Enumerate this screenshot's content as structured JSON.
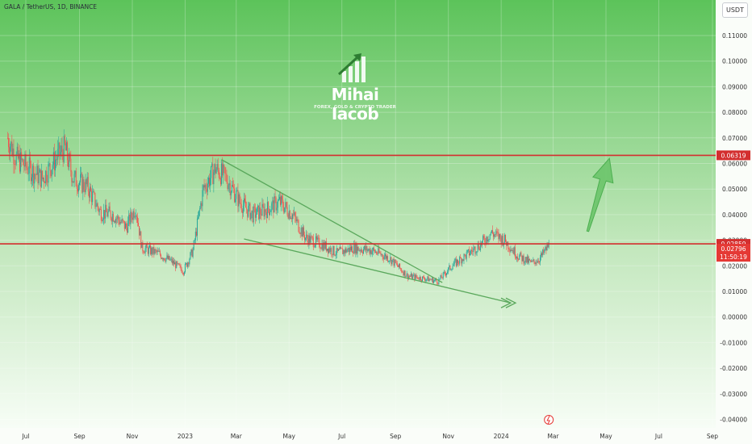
{
  "header": {
    "symbol_legend": "GALA / TetherUS, 1D, BINANCE",
    "currency_button": "USDT"
  },
  "watermark": {
    "name": "Mihai Iacob",
    "tagline": "FOREX, GOLD & CRYPTO TRADER",
    "logo_icon": "rising-bars-arrow-icon"
  },
  "colors": {
    "background_top": "#5cc35a",
    "background_bottom": "#f7fdf6",
    "level_line": "#d32f2f",
    "pattern_line": "#5aa85c",
    "candle_up": "#26a69a",
    "candle_down": "#ef5350",
    "projection_arrow": "#6cc46a"
  },
  "chart_data": {
    "type": "candlestick",
    "title": "GALA / TetherUS, 1D, BINANCE",
    "ylim": [
      -0.04,
      0.12
    ],
    "y_ticks": [
      "0.11000",
      "0.10000",
      "0.09000",
      "0.08000",
      "0.07000",
      "0.06000",
      "0.05000",
      "0.04000",
      "0.03000",
      "0.02000",
      "0.01000",
      "0.00000",
      "-0.01000",
      "-0.02000",
      "-0.03000",
      "-0.04000"
    ],
    "y_tick_values": [
      0.11,
      0.1,
      0.09,
      0.08,
      0.07,
      0.06,
      0.05,
      0.04,
      0.03,
      0.02,
      0.01,
      0.0,
      -0.01,
      -0.02,
      -0.03,
      -0.04
    ],
    "x_ticks": [
      "Jul",
      "Sep",
      "Nov",
      "2023",
      "Mar",
      "May",
      "Jul",
      "Sep",
      "Nov",
      "2024",
      "Mar",
      "May",
      "Jul",
      "Sep"
    ],
    "x_tick_dates": [
      "2022-07-01",
      "2022-09-01",
      "2022-11-01",
      "2023-01-01",
      "2023-03-01",
      "2023-05-01",
      "2023-07-01",
      "2023-09-01",
      "2023-11-01",
      "2024-01-01",
      "2024-03-01",
      "2024-05-01",
      "2024-07-01",
      "2024-09-01"
    ],
    "x_range": [
      "2022-06-10",
      "2024-09-05"
    ],
    "price_trend": [
      {
        "date": "2022-06-10",
        "close": 0.07
      },
      {
        "date": "2022-06-20",
        "close": 0.062
      },
      {
        "date": "2022-07-05",
        "close": 0.058
      },
      {
        "date": "2022-07-20",
        "close": 0.054
      },
      {
        "date": "2022-08-05",
        "close": 0.062
      },
      {
        "date": "2022-08-15",
        "close": 0.066
      },
      {
        "date": "2022-08-25",
        "close": 0.054
      },
      {
        "date": "2022-09-10",
        "close": 0.051
      },
      {
        "date": "2022-09-25",
        "close": 0.041
      },
      {
        "date": "2022-10-10",
        "close": 0.04
      },
      {
        "date": "2022-10-25",
        "close": 0.035
      },
      {
        "date": "2022-11-05",
        "close": 0.043
      },
      {
        "date": "2022-11-12",
        "close": 0.027
      },
      {
        "date": "2022-11-30",
        "close": 0.025
      },
      {
        "date": "2022-12-15",
        "close": 0.022
      },
      {
        "date": "2022-12-30",
        "close": 0.018
      },
      {
        "date": "2023-01-10",
        "close": 0.026
      },
      {
        "date": "2023-01-22",
        "close": 0.05
      },
      {
        "date": "2023-02-05",
        "close": 0.058
      },
      {
        "date": "2023-02-18",
        "close": 0.054
      },
      {
        "date": "2023-03-05",
        "close": 0.045
      },
      {
        "date": "2023-03-20",
        "close": 0.04
      },
      {
        "date": "2023-04-05",
        "close": 0.042
      },
      {
        "date": "2023-04-20",
        "close": 0.045
      },
      {
        "date": "2023-05-05",
        "close": 0.04
      },
      {
        "date": "2023-05-20",
        "close": 0.031
      },
      {
        "date": "2023-06-10",
        "close": 0.028
      },
      {
        "date": "2023-06-25",
        "close": 0.025
      },
      {
        "date": "2023-07-15",
        "close": 0.027
      },
      {
        "date": "2023-08-05",
        "close": 0.026
      },
      {
        "date": "2023-08-25",
        "close": 0.023
      },
      {
        "date": "2023-09-15",
        "close": 0.016
      },
      {
        "date": "2023-10-05",
        "close": 0.015
      },
      {
        "date": "2023-10-20",
        "close": 0.014
      },
      {
        "date": "2023-11-05",
        "close": 0.02
      },
      {
        "date": "2023-11-25",
        "close": 0.025
      },
      {
        "date": "2023-12-10",
        "close": 0.029
      },
      {
        "date": "2023-12-20",
        "close": 0.033
      },
      {
        "date": "2024-01-05",
        "close": 0.03
      },
      {
        "date": "2024-01-20",
        "close": 0.024
      },
      {
        "date": "2024-02-05",
        "close": 0.021
      },
      {
        "date": "2024-02-15",
        "close": 0.023
      },
      {
        "date": "2024-02-25",
        "close": 0.028
      }
    ],
    "horizontal_levels": [
      {
        "value": 0.06319,
        "label": "0.06319"
      },
      {
        "value": 0.02859,
        "label": "0.02859"
      }
    ],
    "current_price": {
      "value": 0.02796,
      "label": "0.02796",
      "countdown": "11:50:19"
    },
    "falling_wedge": {
      "upper": [
        {
          "date": "2023-02-12",
          "price": 0.0615
        },
        {
          "date": "2023-10-25",
          "price": 0.0135
        }
      ],
      "lower": [
        {
          "date": "2023-03-10",
          "price": 0.0305
        },
        {
          "date": "2024-01-12",
          "price": 0.0055
        }
      ]
    },
    "projection_arrow": {
      "from": {
        "date": "2024-04-10",
        "price": 0.0335
      },
      "to": {
        "date": "2024-05-05",
        "price": 0.062
      }
    },
    "grid": true,
    "price_axis_position": "right"
  }
}
